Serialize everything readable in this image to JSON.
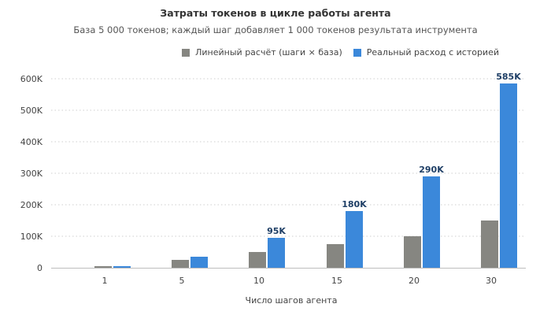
{
  "chart_data": {
    "type": "bar",
    "title": "Затраты токенов в цикле работы агента",
    "subtitle": "База 5 000 токенов; каждый шаг добавляет 1 000 токенов результата инструмента",
    "xlabel": "Число шагов агента",
    "ylabel": "",
    "categories": [
      "1",
      "5",
      "10",
      "15",
      "20",
      "30"
    ],
    "ylim": [
      0,
      600000
    ],
    "yticks": [
      0,
      100000,
      200000,
      300000,
      400000,
      500000,
      600000
    ],
    "ytick_labels": [
      "0",
      "100K",
      "200K",
      "300K",
      "400K",
      "500K",
      "600K"
    ],
    "grid": true,
    "legend_position": "top-right",
    "series": [
      {
        "name": "Линейный расчёт (шаги × база)",
        "color": "#868681",
        "values": [
          5000,
          25000,
          50000,
          75000,
          100000,
          150000
        ],
        "labels": [
          "",
          "",
          "",
          "",
          "",
          ""
        ]
      },
      {
        "name": "Реальный расход с историей",
        "color": "#3b88da",
        "values": [
          5000,
          35000,
          95000,
          180000,
          290000,
          585000
        ],
        "labels": [
          "",
          "",
          "95K",
          "180K",
          "290K",
          "585K"
        ]
      }
    ]
  }
}
